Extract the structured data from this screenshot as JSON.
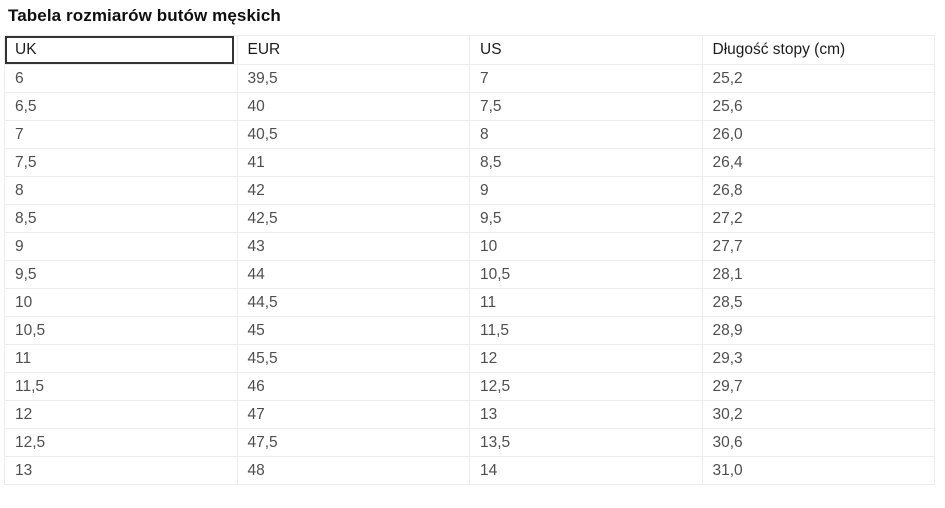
{
  "page": {
    "title": "Tabela rozmiarów butów męskich"
  },
  "table": {
    "columns": [
      "UK",
      "EUR",
      "US",
      "Długość stopy (cm)"
    ],
    "rows": [
      [
        "6",
        "39,5",
        "7",
        "25,2"
      ],
      [
        "6,5",
        "40",
        "7,5",
        "25,6"
      ],
      [
        "7",
        "40,5",
        "8",
        "26,0"
      ],
      [
        "7,5",
        "41",
        "8,5",
        "26,4"
      ],
      [
        "8",
        "42",
        "9",
        "26,8"
      ],
      [
        "8,5",
        "42,5",
        "9,5",
        "27,2"
      ],
      [
        "9",
        "43",
        "10",
        "27,7"
      ],
      [
        "9,5",
        "44",
        "10,5",
        "28,1"
      ],
      [
        "10",
        "44,5",
        "11",
        "28,5"
      ],
      [
        "10,5",
        "45",
        "11,5",
        "28,9"
      ],
      [
        "11",
        "45,5",
        "12",
        "29,3"
      ],
      [
        "11,5",
        "46",
        "12,5",
        "29,7"
      ],
      [
        "12",
        "47",
        "13",
        "30,2"
      ],
      [
        "12,5",
        "47,5",
        "13,5",
        "30,6"
      ],
      [
        "13",
        "48",
        "14",
        "31,0"
      ]
    ]
  },
  "colors": {
    "grid_line": "#ececec",
    "header_text": "#1c1c1c",
    "cell_text": "#4f4f4f",
    "focus_border": "#333333",
    "background": "#ffffff"
  }
}
